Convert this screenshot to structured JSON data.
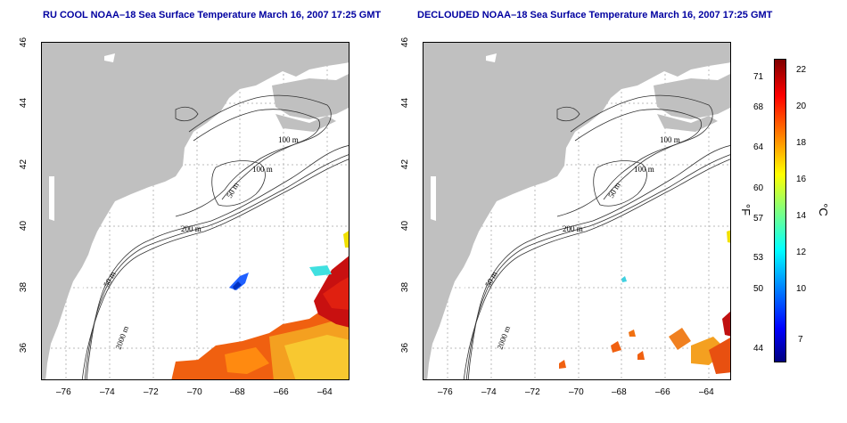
{
  "panels": [
    {
      "title": "RU COOL NOAA–18 Sea Surface Temperature March 16, 2007 17:25 GMT"
    },
    {
      "title": "DECLOUDED NOAA–18 Sea Surface Temperature March 16, 2007 17:25 GMT"
    }
  ],
  "x_ticks": [
    "–76",
    "–74",
    "–72",
    "–70",
    "–68",
    "–66",
    "–64"
  ],
  "y_ticks": [
    "46",
    "44",
    "42",
    "40",
    "38",
    "36"
  ],
  "contour_labels": [
    "100 m",
    "100 m",
    "50 m",
    "200 m",
    "50 m",
    "2000 m"
  ],
  "colorbar": {
    "fahrenheit_ticks": [
      "71",
      "68",
      "64",
      "60",
      "57",
      "53",
      "50",
      "44"
    ],
    "celsius_ticks": [
      "22",
      "20",
      "18",
      "16",
      "14",
      "12",
      "10",
      "7"
    ],
    "fahrenheit_unit": "°F",
    "celsius_unit": "°C",
    "colors": [
      "#00007f",
      "#0000ff",
      "#007fff",
      "#00ffff",
      "#7fff7f",
      "#ffff00",
      "#ff7f00",
      "#ff0000",
      "#7f0000"
    ]
  }
}
